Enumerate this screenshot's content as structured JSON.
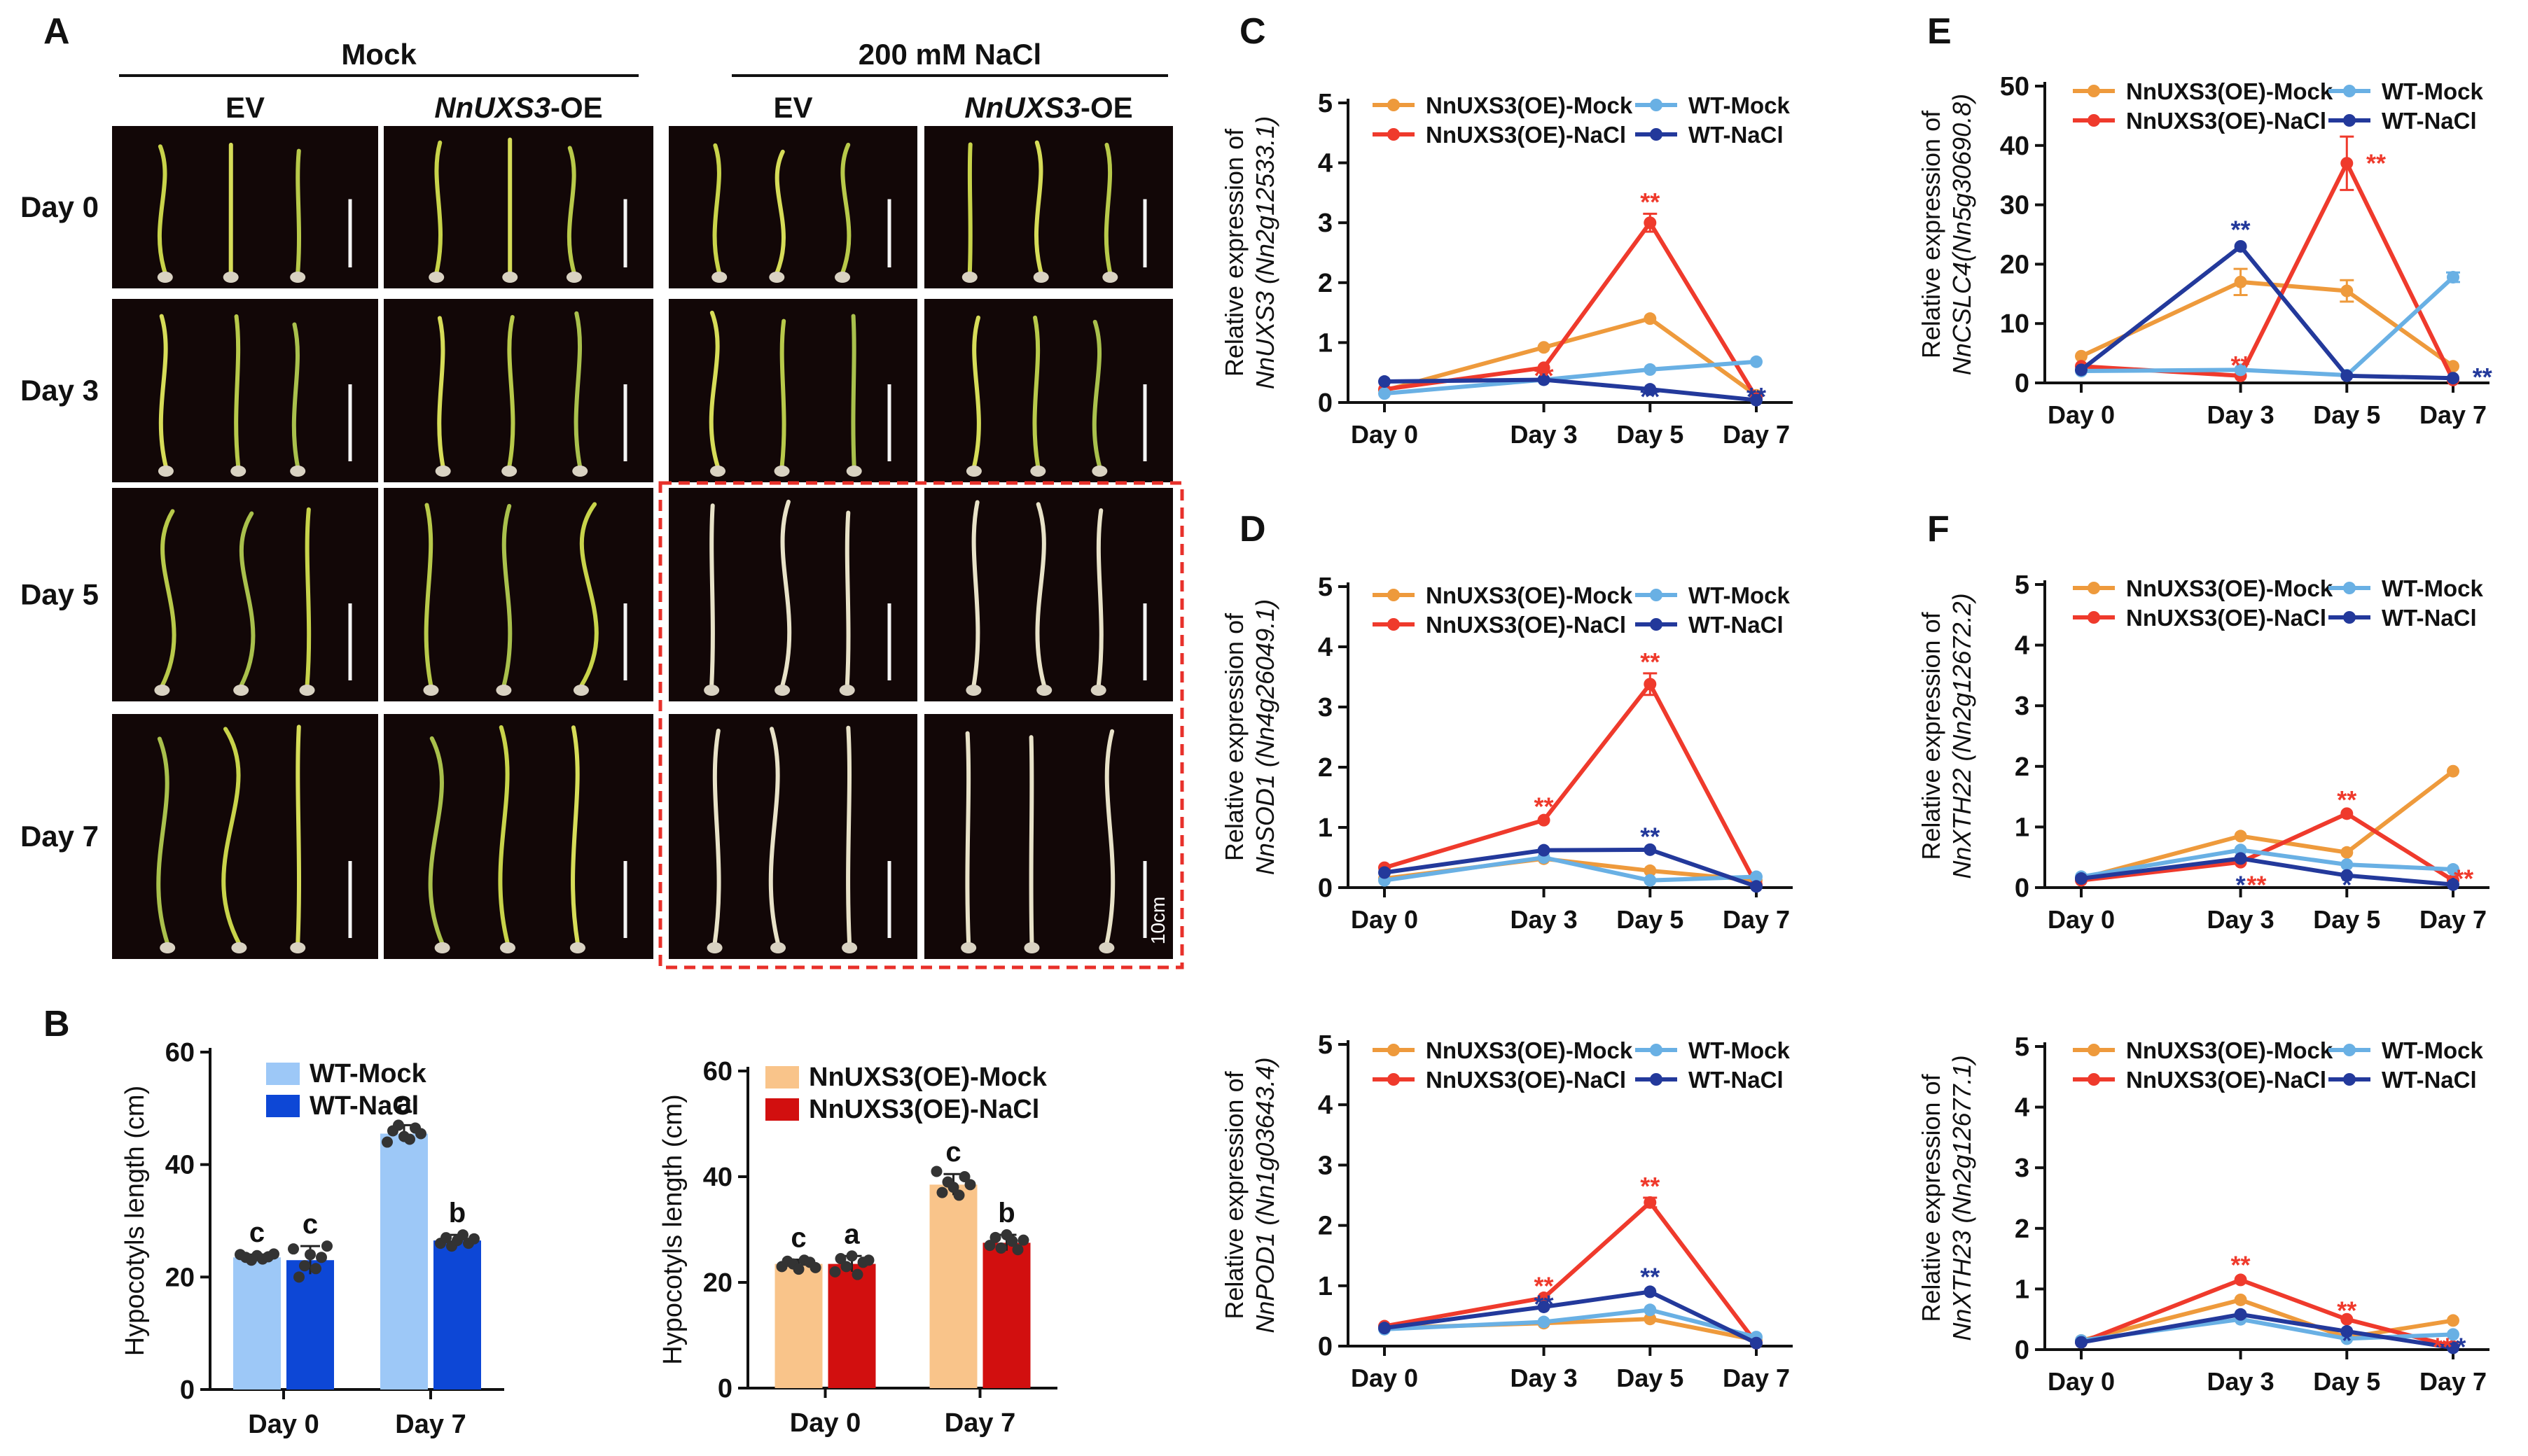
{
  "panel_a": {
    "letter": "A",
    "groups": [
      {
        "label": "Mock",
        "columns": [
          {
            "pre": "EV",
            "italic": "",
            "post": ""
          },
          {
            "pre": "",
            "italic": "NnUXS3",
            "post": "-OE"
          }
        ]
      },
      {
        "label": "200 mM NaCl",
        "columns": [
          {
            "pre": "EV",
            "italic": "",
            "post": ""
          },
          {
            "pre": "",
            "italic": "NnUXS3",
            "post": "-OE"
          }
        ]
      }
    ],
    "rows": [
      "Day 0",
      "Day 3",
      "Day 5",
      "Day 7"
    ],
    "scale_label": "10cm",
    "photo_background": "#120707",
    "highlight_color": "#e8302a"
  },
  "chart_data": [
    {
      "panel": "B",
      "type": "bar",
      "ylabel": "Hypocotyls length (cm)",
      "categories": [
        "Day 0",
        "Day 7"
      ],
      "ylim": [
        0,
        60
      ],
      "yticks": [
        0,
        20,
        40,
        60
      ],
      "series": [
        {
          "name": "WT-Mock",
          "color": "#9dc8f7",
          "values": [
            23.5,
            45.5
          ],
          "errors": [
            0.5,
            1.5
          ],
          "letters": [
            "c",
            "a"
          ],
          "points": [
            [
              24,
              23.5,
              23,
              23.8,
              23.2,
              23.6,
              24.1
            ],
            [
              44,
              46,
              47,
              45,
              44.5,
              46.5,
              45.5
            ]
          ]
        },
        {
          "name": "WT-NaCl",
          "color": "#0d47d6",
          "values": [
            23,
            26.5
          ],
          "errors": [
            2.5,
            1
          ],
          "letters": [
            "c",
            "b"
          ],
          "points": [
            [
              25,
              20,
              22,
              24,
              21.5,
              23.5,
              25.5
            ],
            [
              26,
              27,
              25.5,
              26.5,
              27.5,
              26,
              26.8
            ]
          ]
        }
      ]
    },
    {
      "panel": "B",
      "type": "bar",
      "ylabel": "Hypocotyls length (cm)",
      "categories": [
        "Day 0",
        "Day 7"
      ],
      "ylim": [
        0,
        60
      ],
      "yticks": [
        0,
        20,
        40,
        60
      ],
      "series": [
        {
          "name": "NnUXS3(OE)-Mock",
          "color": "#f9c48a",
          "values": [
            23.5,
            38.5
          ],
          "errors": [
            0.8,
            2
          ],
          "letters": [
            "c",
            "c"
          ],
          "points": [
            [
              23,
              24,
              23.5,
              22.5,
              24.2,
              23.8,
              22.8
            ],
            [
              41,
              37,
              39,
              38,
              36.5,
              40,
              38.5
            ]
          ]
        },
        {
          "name": "NnUXS3(OE)-NaCl",
          "color": "#d20f0f",
          "values": [
            23.5,
            27.5
          ],
          "errors": [
            1.5,
            1.5
          ],
          "letters": [
            "a",
            "b"
          ],
          "points": [
            [
              22,
              24.5,
              23,
              25,
              21.5,
              23.8,
              24.2
            ],
            [
              27,
              28.5,
              26.5,
              29,
              27.8,
              26.2,
              28
            ]
          ]
        }
      ]
    },
    {
      "panel": "C",
      "type": "line",
      "ylabel_pre": "Relative expression of",
      "ylabel_gene": "NnUXS3 (Nn2g12533.1)",
      "categories": [
        "Day 0",
        "Day 3",
        "Day 5",
        "Day 7"
      ],
      "x": [
        0,
        3,
        5,
        7
      ],
      "ylim": [
        0,
        5
      ],
      "yticks": [
        0,
        1,
        2,
        3,
        4,
        5
      ],
      "series": [
        {
          "name": "NnUXS3(OE)-Mock",
          "color": "#ee9a3c",
          "values": [
            0.2,
            0.92,
            1.4,
            0.12
          ]
        },
        {
          "name": "NnUXS3(OE)-NaCl",
          "color": "#ef3a2c",
          "values": [
            0.22,
            0.58,
            3.0,
            0.08
          ],
          "errors": [
            0,
            0,
            0.15,
            0
          ]
        },
        {
          "name": "WT-Mock",
          "color": "#69b0e4",
          "values": [
            0.15,
            0.38,
            0.55,
            0.68
          ]
        },
        {
          "name": "WT-NaCl",
          "color": "#23399b",
          "values": [
            0.35,
            0.38,
            0.22,
            0.04
          ]
        }
      ],
      "annotations": [
        {
          "text": "**",
          "series": 1,
          "x": 3,
          "y": 0.35
        },
        {
          "text": "**",
          "series": 1,
          "x": 5,
          "y": 3.25
        },
        {
          "text": "**",
          "series": 3,
          "x": 5,
          "y": 0.0
        },
        {
          "text": "**",
          "series": 3,
          "x": 7,
          "y": 0.0
        }
      ]
    },
    {
      "panel": "D",
      "type": "line",
      "ylabel_pre": "Relative expression of",
      "ylabel_gene": "NnSOD1 (Nn4g26049.1)",
      "categories": [
        "Day 0",
        "Day 3",
        "Day 5",
        "Day 7"
      ],
      "x": [
        0,
        3,
        5,
        7
      ],
      "ylim": [
        0,
        5
      ],
      "yticks": [
        0,
        1,
        2,
        3,
        4,
        5
      ],
      "series": [
        {
          "name": "NnUXS3(OE)-Mock",
          "color": "#ee9a3c",
          "values": [
            0.15,
            0.48,
            0.28,
            0.12
          ]
        },
        {
          "name": "NnUXS3(OE)-NaCl",
          "color": "#ef3a2c",
          "values": [
            0.33,
            1.12,
            3.38,
            0.05
          ],
          "errors": [
            0,
            0,
            0.18,
            0
          ]
        },
        {
          "name": "WT-Mock",
          "color": "#69b0e4",
          "values": [
            0.12,
            0.5,
            0.12,
            0.18
          ]
        },
        {
          "name": "WT-NaCl",
          "color": "#23399b",
          "values": [
            0.25,
            0.62,
            0.63,
            0.02
          ]
        }
      ],
      "annotations": [
        {
          "text": "**",
          "series": 1,
          "x": 3,
          "y": 1.25
        },
        {
          "text": "**",
          "series": 1,
          "x": 5,
          "y": 3.65
        },
        {
          "text": "**",
          "series": 3,
          "x": 5,
          "y": 0.75
        }
      ]
    },
    {
      "panel": "D",
      "type": "line",
      "ylabel_pre": "Relative expression of",
      "ylabel_gene": "NnPOD1 (Nn1g03643.4)",
      "categories": [
        "Day 0",
        "Day 3",
        "Day 5",
        "Day 7"
      ],
      "x": [
        0,
        3,
        5,
        7
      ],
      "ylim": [
        0,
        5
      ],
      "yticks": [
        0,
        1,
        2,
        3,
        4,
        5
      ],
      "series": [
        {
          "name": "NnUXS3(OE)-Mock",
          "color": "#ee9a3c",
          "values": [
            0.3,
            0.38,
            0.45,
            0.1
          ]
        },
        {
          "name": "NnUXS3(OE)-NaCl",
          "color": "#ef3a2c",
          "values": [
            0.33,
            0.8,
            2.38,
            0.05
          ],
          "errors": [
            0,
            0,
            0.08,
            0
          ]
        },
        {
          "name": "WT-Mock",
          "color": "#69b0e4",
          "values": [
            0.28,
            0.4,
            0.6,
            0.15
          ]
        },
        {
          "name": "WT-NaCl",
          "color": "#23399b",
          "values": [
            0.3,
            0.65,
            0.9,
            0.05
          ]
        }
      ],
      "annotations": [
        {
          "text": "**",
          "series": 1,
          "x": 3,
          "y": 0.9
        },
        {
          "text": "**",
          "series": 3,
          "x": 3,
          "y": 0.6
        },
        {
          "text": "**",
          "series": 1,
          "x": 5,
          "y": 2.55
        },
        {
          "text": "**",
          "series": 3,
          "x": 5,
          "y": 1.05
        }
      ]
    },
    {
      "panel": "E",
      "type": "line",
      "ylabel_pre": "Relative expression of",
      "ylabel_gene": "NnCSLC4(Nn5g30690.8)",
      "categories": [
        "Day 0",
        "Day 3",
        "Day 5",
        "Day 7"
      ],
      "x": [
        0,
        3,
        5,
        7
      ],
      "ylim": [
        0,
        50
      ],
      "yticks": [
        0,
        10,
        20,
        30,
        40,
        50
      ],
      "series": [
        {
          "name": "NnUXS3(OE)-Mock",
          "color": "#ee9a3c",
          "values": [
            4.5,
            17.0,
            15.5,
            2.8
          ],
          "errors": [
            0,
            2.2,
            1.8,
            0
          ]
        },
        {
          "name": "NnUXS3(OE)-NaCl",
          "color": "#ef3a2c",
          "values": [
            2.8,
            1.2,
            37.0,
            0.5
          ],
          "errors": [
            0,
            0,
            4.5,
            0
          ]
        },
        {
          "name": "WT-Mock",
          "color": "#69b0e4",
          "values": [
            2.0,
            2.2,
            1.3,
            17.8
          ],
          "errors": [
            0,
            0,
            0,
            0.8
          ]
        },
        {
          "name": "WT-NaCl",
          "color": "#23399b",
          "values": [
            2.2,
            23.0,
            1.2,
            0.8
          ]
        }
      ],
      "annotations": [
        {
          "text": "**",
          "series": 3,
          "x": 3,
          "y": 24.8
        },
        {
          "text": "**",
          "series": 1,
          "x": 3,
          "y": 2.0
        },
        {
          "text": "**",
          "series": 1,
          "x": 5,
          "y": 36.0,
          "dx": 0.55
        },
        {
          "text": "**",
          "series": 3,
          "x": 7,
          "y": 0.0,
          "dx": 0.55
        }
      ]
    },
    {
      "panel": "F",
      "type": "line",
      "ylabel_pre": "Relative expression of",
      "ylabel_gene": "NnXTH22 (Nn2g12672.2)",
      "categories": [
        "Day 0",
        "Day 3",
        "Day 5",
        "Day 7"
      ],
      "x": [
        0,
        3,
        5,
        7
      ],
      "ylim": [
        0,
        5
      ],
      "yticks": [
        0,
        1,
        2,
        3,
        4,
        5
      ],
      "series": [
        {
          "name": "NnUXS3(OE)-Mock",
          "color": "#ee9a3c",
          "values": [
            0.15,
            0.85,
            0.58,
            1.92
          ]
        },
        {
          "name": "NnUXS3(OE)-NaCl",
          "color": "#ef3a2c",
          "values": [
            0.12,
            0.42,
            1.22,
            0.12
          ]
        },
        {
          "name": "WT-Mock",
          "color": "#69b0e4",
          "values": [
            0.18,
            0.62,
            0.38,
            0.3
          ]
        },
        {
          "name": "WT-NaCl",
          "color": "#23399b",
          "values": [
            0.15,
            0.48,
            0.2,
            0.05
          ]
        }
      ],
      "annotations": [
        {
          "text": "*",
          "series": 3,
          "x": 3,
          "y": -0.05
        },
        {
          "text": "**",
          "series": 1,
          "x": 3,
          "y": -0.05,
          "dx": 0.3
        },
        {
          "text": "**",
          "series": 1,
          "x": 5,
          "y": 1.35
        },
        {
          "text": "*",
          "series": 3,
          "x": 5,
          "y": -0.05
        },
        {
          "text": "**",
          "series": 1,
          "x": 7,
          "y": 0.05,
          "dx": 0.2
        },
        {
          "text": "*",
          "series": 3,
          "x": 7,
          "y": -0.08
        }
      ]
    },
    {
      "panel": "F",
      "type": "line",
      "ylabel_pre": "Relative expression of",
      "ylabel_gene": "NnXTH23 (Nn2g12677.1)",
      "categories": [
        "Day 0",
        "Day 3",
        "Day 5",
        "Day 7"
      ],
      "x": [
        0,
        3,
        5,
        7
      ],
      "ylim": [
        0,
        5
      ],
      "yticks": [
        0,
        1,
        2,
        3,
        4,
        5
      ],
      "series": [
        {
          "name": "NnUXS3(OE)-Mock",
          "color": "#ee9a3c",
          "values": [
            0.15,
            0.82,
            0.2,
            0.48
          ]
        },
        {
          "name": "NnUXS3(OE)-NaCl",
          "color": "#ef3a2c",
          "values": [
            0.12,
            1.15,
            0.5,
            0.05
          ]
        },
        {
          "name": "WT-Mock",
          "color": "#69b0e4",
          "values": [
            0.15,
            0.5,
            0.18,
            0.25
          ]
        },
        {
          "name": "WT-NaCl",
          "color": "#23399b",
          "values": [
            0.12,
            0.58,
            0.3,
            0.03
          ]
        }
      ],
      "annotations": [
        {
          "text": "**",
          "series": 1,
          "x": 3,
          "y": 1.3
        },
        {
          "text": "**",
          "series": 1,
          "x": 5,
          "y": 0.55
        },
        {
          "text": "*",
          "series": 3,
          "x": 5,
          "y": 0.05
        },
        {
          "text": "**",
          "series": 1,
          "x": 7,
          "y": -0.05,
          "dx": -0.2
        },
        {
          "text": "*",
          "series": 3,
          "x": 7,
          "y": -0.05,
          "dx": 0.15
        }
      ]
    }
  ]
}
